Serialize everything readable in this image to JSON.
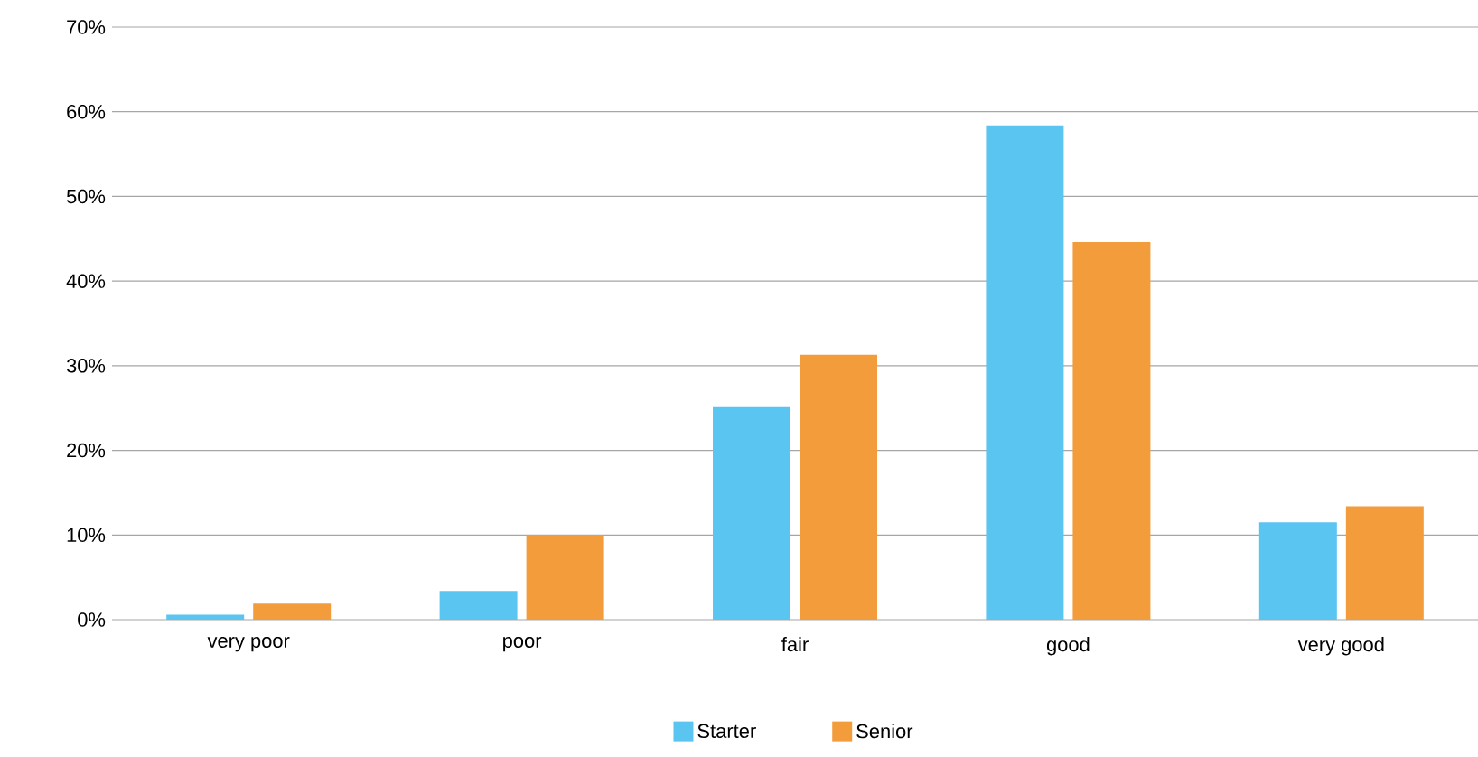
{
  "chart_data": {
    "type": "bar",
    "categories": [
      "very poor",
      "poor",
      "fair",
      "good",
      "very good"
    ],
    "series": [
      {
        "name": "Starter",
        "color": "#5bc5f2",
        "values": [
          0.6,
          3.4,
          25.2,
          58.4,
          11.5
        ]
      },
      {
        "name": "Senior",
        "color": "#f39c3c",
        "values": [
          1.9,
          10.0,
          31.3,
          44.6,
          13.4
        ]
      }
    ],
    "ylim": [
      0,
      70
    ],
    "yticks": [
      {
        "value": 0,
        "label": "0%"
      },
      {
        "value": 10,
        "label": "10%"
      },
      {
        "value": 20,
        "label": "20%"
      },
      {
        "value": 30,
        "label": "30%"
      },
      {
        "value": 40,
        "label": "40%"
      },
      {
        "value": 50,
        "label": "50%"
      },
      {
        "value": 60,
        "label": "60%"
      },
      {
        "value": 70,
        "label": "70%"
      }
    ],
    "grid": "y",
    "legend": "bottom"
  }
}
